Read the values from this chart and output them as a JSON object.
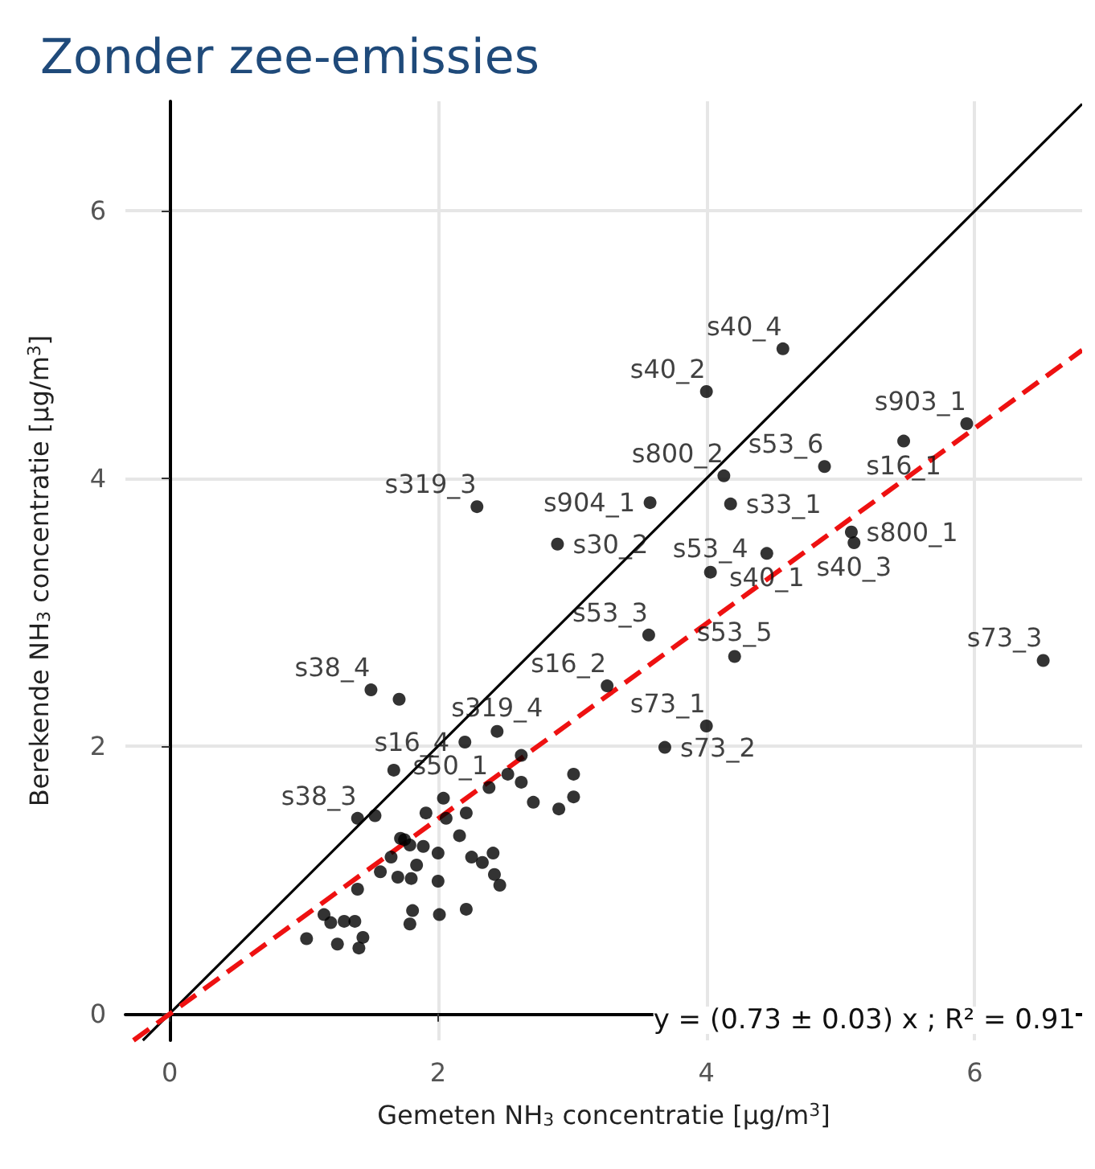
{
  "chart_data": {
    "type": "scatter",
    "title": "Zonder zee-emissies",
    "xlabel": "Gemeten NH$_{3}$ concentratie [µg/m$^{3}$]",
    "ylabel": "Berekende NH$_{3}$ concentratie [µg/m$^{3}$]",
    "xlim": [
      -0.33,
      6.8
    ],
    "ylim": [
      -0.2,
      6.82
    ],
    "xticks": [
      0,
      2,
      4,
      6
    ],
    "yticks": [
      0,
      2,
      4,
      6
    ],
    "grid": true,
    "series": [
      {
        "color": "#000000",
        "marker": "circle",
        "x": [
          4.57,
          4.0,
          5.94,
          4.88,
          5.47,
          4.13,
          3.58,
          4.18,
          2.29,
          2.89,
          5.08,
          5.1,
          4.45,
          4.03,
          3.57,
          4.21,
          3.26,
          6.51,
          4.0,
          3.69,
          2.44,
          2.2,
          3.01,
          3.01,
          2.9,
          2.71,
          2.62,
          2.52,
          2.62,
          1.5,
          1.71,
          1.67,
          2.38,
          2.04,
          1.91,
          2.06,
          2.21,
          1.4,
          1.53,
          1.72,
          1.75,
          1.79,
          1.89,
          1.65,
          1.84,
          2.0,
          2.16,
          2.25,
          2.33,
          2.41,
          2.42,
          2.46,
          1.57,
          1.7,
          1.8,
          2.0,
          1.4,
          1.81,
          1.79,
          2.01,
          2.21,
          1.15,
          1.2,
          1.3,
          1.38,
          1.02,
          1.25,
          1.44,
          1.41
        ],
        "values": [
          4.97,
          4.65,
          4.41,
          4.09,
          4.28,
          4.02,
          3.82,
          3.81,
          3.79,
          3.51,
          3.6,
          3.52,
          3.44,
          3.3,
          2.83,
          2.67,
          2.45,
          2.64,
          2.15,
          1.99,
          2.11,
          2.03,
          1.79,
          1.62,
          1.53,
          1.58,
          1.73,
          1.79,
          1.93,
          2.42,
          2.35,
          1.82,
          1.69,
          1.61,
          1.5,
          1.46,
          1.5,
          1.46,
          1.48,
          1.31,
          1.3,
          1.26,
          1.25,
          1.17,
          1.11,
          1.2,
          1.33,
          1.17,
          1.13,
          1.2,
          1.04,
          0.96,
          1.06,
          1.02,
          1.01,
          0.99,
          0.93,
          0.77,
          0.67,
          0.74,
          0.78,
          0.74,
          0.68,
          0.69,
          0.69,
          0.56,
          0.52,
          0.57,
          0.49
        ],
        "value_labels": [
          "s40_4",
          "s40_2",
          "s903_1",
          "s53_6",
          "s16_1",
          "s800_2",
          "s904_1",
          "s33_1",
          "s319_3",
          "s30_2",
          "s800_1",
          "s40_3",
          "s40_1",
          "s53_4",
          "s53_3",
          "s53_5",
          "s16_2",
          "s73_3",
          "s73_1",
          "s73_2",
          "s319_4",
          "s16_4",
          null,
          null,
          null,
          null,
          null,
          null,
          null,
          "s38_4",
          null,
          null,
          "s50_1",
          null,
          null,
          null,
          null,
          "s38_3",
          null,
          null,
          null,
          null,
          null,
          null,
          null,
          null,
          null,
          null,
          null,
          null,
          null,
          null,
          null,
          null,
          null,
          null,
          null,
          null,
          null,
          null,
          null,
          null,
          null,
          null,
          null,
          null,
          null,
          null,
          null
        ]
      },
      {
        "type": "line",
        "color": "#000000",
        "line_style": "solid",
        "x": [
          -0.2,
          6.8
        ],
        "values": [
          -0.2,
          6.8
        ]
      },
      {
        "type": "line",
        "color": "#ee1111",
        "line_style": "dashed",
        "x": [
          -0.27,
          6.8
        ],
        "values": [
          -0.2,
          4.96
        ]
      }
    ],
    "annotations": [
      "y = (0.73 ± 0.03) x ; R² = 0.91"
    ]
  }
}
